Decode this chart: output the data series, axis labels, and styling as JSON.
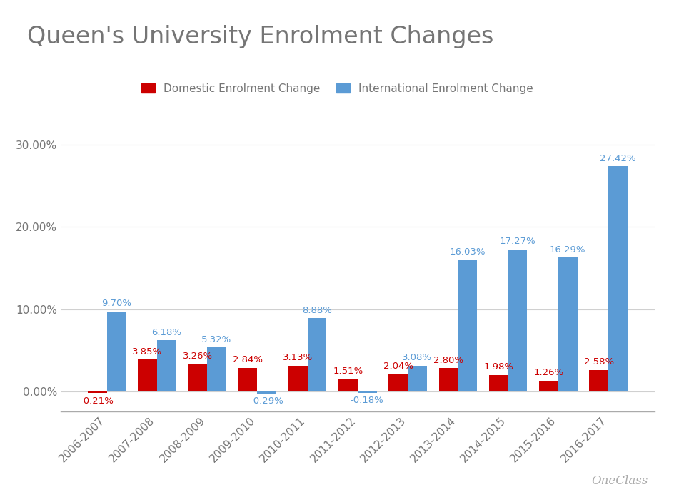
{
  "title": "Queen's University Enrolment Changes",
  "categories": [
    "2006-2007",
    "2007-2008",
    "2008-2009",
    "2009-2010",
    "2010-2011",
    "2011-2012",
    "2012-2013",
    "2013-2014",
    "2014-2015",
    "2015-2016",
    "2016-2017"
  ],
  "domestic": [
    -0.21,
    3.85,
    3.26,
    2.84,
    3.13,
    1.51,
    2.04,
    2.8,
    1.98,
    1.26,
    2.58
  ],
  "international": [
    9.7,
    6.18,
    5.32,
    -0.29,
    8.88,
    -0.18,
    3.08,
    16.03,
    17.27,
    16.29,
    27.42
  ],
  "domestic_color": "#cc0000",
  "international_color": "#5b9bd5",
  "domestic_label": "Domestic Enrolment Change",
  "international_label": "International Enrolment Change",
  "ylim": [
    -2.5,
    33
  ],
  "yticks": [
    0.0,
    10.0,
    20.0,
    30.0
  ],
  "ytick_labels": [
    "0.00%",
    "10.00%",
    "20.00%",
    "30.00%"
  ],
  "title_fontsize": 24,
  "title_color": "#757575",
  "bar_width": 0.38,
  "background_color": "#ffffff",
  "grid_color": "#d0d0d0",
  "annotation_domestic_color": "#cc0000",
  "annotation_international_color": "#5b9bd5",
  "annotation_fontsize": 9.5,
  "tick_label_color": "#757575",
  "tick_label_fontsize": 11,
  "legend_fontsize": 11,
  "oneclass_text": "OneClass"
}
